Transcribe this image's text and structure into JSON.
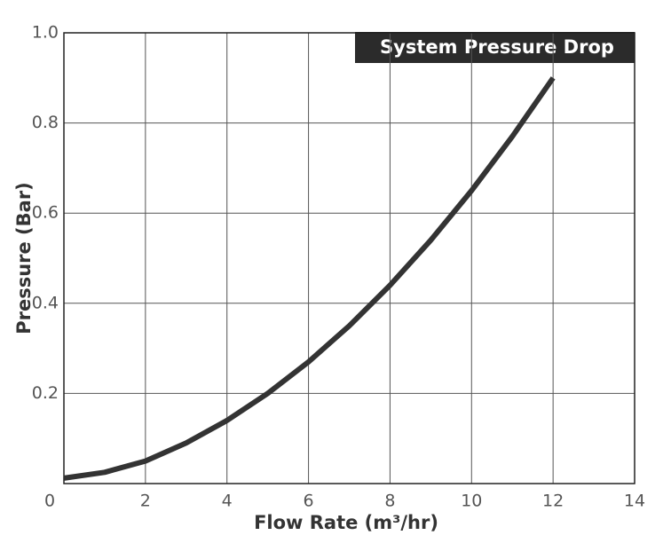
{
  "chart_data": {
    "type": "line",
    "title": "System Pressure Drop",
    "x_label": "Flow Rate (m³/hr)",
    "y_label": "Pressure (Bar)",
    "x": [
      0,
      1,
      2,
      3,
      4,
      5,
      6,
      7,
      8,
      9,
      10,
      11,
      12
    ],
    "series": [
      {
        "name": "Pressure",
        "color": "#333333",
        "values": [
          0.012,
          0.025,
          0.05,
          0.09,
          0.14,
          0.2,
          0.27,
          0.35,
          0.44,
          0.54,
          0.65,
          0.77,
          0.9
        ]
      }
    ],
    "xlim": [
      0,
      14
    ],
    "xticks": [
      0,
      2,
      4,
      6,
      8,
      10,
      12,
      14
    ],
    "ylim": [
      0,
      1
    ],
    "yticks": [
      0.2,
      0.4,
      0.6,
      0.8,
      {
        "value": 1,
        "label": "1.0"
      }
    ],
    "grid": true
  }
}
